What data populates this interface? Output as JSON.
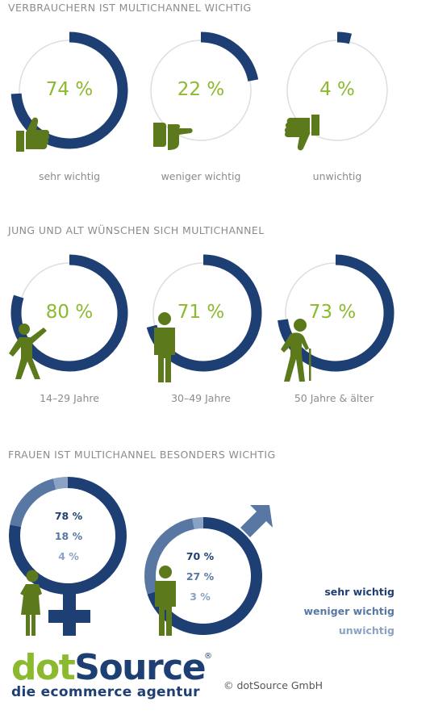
{
  "colors": {
    "navy": "#1e3f73",
    "mid_blue": "#5878a3",
    "light_blue": "#8aa3c4",
    "track": "#dedede",
    "green": "#8cba2e",
    "figure_green": "#5c7a1c",
    "heading_gray": "#8c8c8c"
  },
  "chart_data": [
    {
      "type": "pie",
      "title": "VERBRAUCHERN IST MULTICHANNEL WICHTIG",
      "categories": [
        "sehr wichtig",
        "weniger wichtig",
        "unwichtig"
      ],
      "values": [
        74,
        22,
        4
      ],
      "labels": [
        "74 %",
        "22 %",
        "4 %"
      ],
      "icons": [
        "thumbs-up-icon",
        "thumb-sideways-icon",
        "thumbs-down-icon"
      ]
    },
    {
      "type": "pie",
      "title": "JUNG UND ALT WÜNSCHEN SICH MULTICHANNEL",
      "categories": [
        "14–29 Jahre",
        "30–49 Jahre",
        "50 Jahre & älter"
      ],
      "values": [
        80,
        71,
        73
      ],
      "labels": [
        "80 %",
        "71 %",
        "73 %"
      ],
      "icons": [
        "young-person-icon",
        "adult-person-icon",
        "senior-with-cane-icon"
      ]
    },
    {
      "type": "pie",
      "title": "FRAUEN IST MULTICHANNEL BESONDERS WICHTIG",
      "legend": [
        "sehr wichtig",
        "weniger wichtig",
        "unwichtig"
      ],
      "series": [
        {
          "values": [
            78,
            18,
            4
          ],
          "labels": [
            "78 %",
            "18 %",
            "4 %"
          ],
          "icon": "female-symbol-icon"
        },
        {
          "values": [
            70,
            27,
            3
          ],
          "labels": [
            "70 %",
            "27 %",
            "3 %"
          ],
          "icon": "male-symbol-icon"
        }
      ]
    }
  ],
  "footer": {
    "logo_dot": "dot",
    "logo_source": "Source",
    "logo_reg": "®",
    "logo_tagline": "die ecommerce agentur",
    "copyright": "© dotSource GmbH"
  }
}
